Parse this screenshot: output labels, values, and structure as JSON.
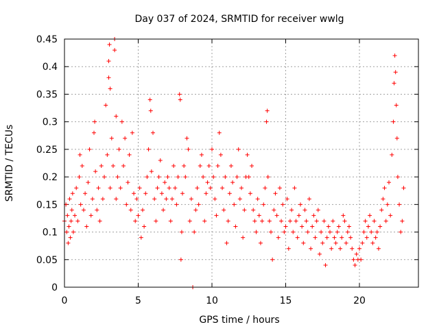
{
  "chart_data": {
    "type": "scatter",
    "title": "Day 037 of 2024, SRMTID for receiver wwlg",
    "xlabel": "GPS time / hours",
    "ylabel": "SRMTID / TECUs",
    "xlim": [
      0,
      24
    ],
    "ylim": [
      0,
      0.45
    ],
    "xticks": [
      0,
      5,
      10,
      15,
      20
    ],
    "xtick_labels": [
      "0",
      "5",
      "10",
      "15",
      "20"
    ],
    "yticks": [
      0,
      0.05,
      0.1,
      0.15,
      0.2,
      0.25,
      0.3,
      0.35,
      0.4,
      0.45
    ],
    "ytick_labels": [
      "0",
      "0.05",
      "0.1",
      "0.15",
      "0.2",
      "0.25",
      "0.3",
      "0.35",
      "0.4",
      "0.45"
    ],
    "grid": true,
    "marker": "plus",
    "marker_color": "#ff0000",
    "series": [
      {
        "name": "SRMTID",
        "points": [
          [
            0.0,
            0.12
          ],
          [
            0.1,
            0.15
          ],
          [
            0.15,
            0.1
          ],
          [
            0.2,
            0.13
          ],
          [
            0.25,
            0.08
          ],
          [
            0.3,
            0.11
          ],
          [
            0.35,
            0.16
          ],
          [
            0.4,
            0.09
          ],
          [
            0.45,
            0.12
          ],
          [
            0.5,
            0.14
          ],
          [
            0.55,
            0.17
          ],
          [
            0.6,
            0.1
          ],
          [
            0.7,
            0.13
          ],
          [
            0.8,
            0.18
          ],
          [
            0.9,
            0.12
          ],
          [
            1.0,
            0.2
          ],
          [
            1.05,
            0.24
          ],
          [
            1.1,
            0.15
          ],
          [
            1.2,
            0.22
          ],
          [
            1.3,
            0.14
          ],
          [
            1.4,
            0.17
          ],
          [
            1.5,
            0.11
          ],
          [
            1.6,
            0.19
          ],
          [
            1.7,
            0.25
          ],
          [
            1.8,
            0.13
          ],
          [
            1.9,
            0.16
          ],
          [
            2.0,
            0.28
          ],
          [
            2.05,
            0.3
          ],
          [
            2.1,
            0.21
          ],
          [
            2.2,
            0.14
          ],
          [
            2.3,
            0.18
          ],
          [
            2.4,
            0.12
          ],
          [
            2.5,
            0.22
          ],
          [
            2.6,
            0.16
          ],
          [
            2.7,
            0.2
          ],
          [
            2.8,
            0.33
          ],
          [
            2.9,
            0.24
          ],
          [
            3.0,
            0.38
          ],
          [
            3.0,
            0.41
          ],
          [
            3.05,
            0.44
          ],
          [
            3.1,
            0.36
          ],
          [
            3.1,
            0.18
          ],
          [
            3.2,
            0.27
          ],
          [
            3.3,
            0.22
          ],
          [
            3.4,
            0.45
          ],
          [
            3.4,
            0.43
          ],
          [
            3.5,
            0.31
          ],
          [
            3.5,
            0.16
          ],
          [
            3.6,
            0.2
          ],
          [
            3.7,
            0.25
          ],
          [
            3.8,
            0.18
          ],
          [
            3.9,
            0.3
          ],
          [
            4.0,
            0.22
          ],
          [
            4.1,
            0.27
          ],
          [
            4.2,
            0.15
          ],
          [
            4.3,
            0.19
          ],
          [
            4.4,
            0.24
          ],
          [
            4.5,
            0.14
          ],
          [
            4.6,
            0.28
          ],
          [
            4.7,
            0.17
          ],
          [
            4.8,
            0.12
          ],
          [
            4.9,
            0.16
          ],
          [
            5.0,
            0.13
          ],
          [
            5.1,
            0.18
          ],
          [
            5.2,
            0.09
          ],
          [
            5.3,
            0.14
          ],
          [
            5.4,
            0.11
          ],
          [
            5.5,
            0.17
          ],
          [
            5.6,
            0.2
          ],
          [
            5.7,
            0.25
          ],
          [
            5.8,
            0.34
          ],
          [
            5.85,
            0.32
          ],
          [
            5.9,
            0.21
          ],
          [
            6.0,
            0.28
          ],
          [
            6.1,
            0.16
          ],
          [
            6.2,
            0.12
          ],
          [
            6.3,
            0.18
          ],
          [
            6.4,
            0.2
          ],
          [
            6.5,
            0.23
          ],
          [
            6.6,
            0.17
          ],
          [
            6.7,
            0.14
          ],
          [
            6.8,
            0.19
          ],
          [
            6.9,
            0.16
          ],
          [
            7.0,
            0.2
          ],
          [
            7.1,
            0.18
          ],
          [
            7.2,
            0.12
          ],
          [
            7.3,
            0.16
          ],
          [
            7.4,
            0.22
          ],
          [
            7.5,
            0.18
          ],
          [
            7.6,
            0.15
          ],
          [
            7.7,
            0.2
          ],
          [
            7.8,
            0.35
          ],
          [
            7.85,
            0.34
          ],
          [
            7.9,
            0.05
          ],
          [
            7.95,
            0.1
          ],
          [
            8.0,
            0.17
          ],
          [
            8.1,
            0.22
          ],
          [
            8.2,
            0.2
          ],
          [
            8.3,
            0.27
          ],
          [
            8.4,
            0.25
          ],
          [
            8.5,
            0.12
          ],
          [
            8.6,
            0.16
          ],
          [
            8.7,
            0.0
          ],
          [
            8.8,
            0.1
          ],
          [
            8.9,
            0.14
          ],
          [
            9.0,
            0.18
          ],
          [
            9.1,
            0.15
          ],
          [
            9.2,
            0.22
          ],
          [
            9.3,
            0.24
          ],
          [
            9.4,
            0.2
          ],
          [
            9.5,
            0.12
          ],
          [
            9.6,
            0.17
          ],
          [
            9.7,
            0.19
          ],
          [
            9.8,
            0.22
          ],
          [
            9.9,
            0.18
          ],
          [
            10.0,
            0.25
          ],
          [
            10.1,
            0.2
          ],
          [
            10.2,
            0.16
          ],
          [
            10.3,
            0.13
          ],
          [
            10.4,
            0.22
          ],
          [
            10.5,
            0.28
          ],
          [
            10.6,
            0.24
          ],
          [
            10.7,
            0.18
          ],
          [
            10.8,
            0.14
          ],
          [
            10.9,
            0.2
          ],
          [
            11.0,
            0.08
          ],
          [
            11.1,
            0.12
          ],
          [
            11.2,
            0.17
          ],
          [
            11.3,
            0.22
          ],
          [
            11.4,
            0.19
          ],
          [
            11.5,
            0.15
          ],
          [
            11.6,
            0.11
          ],
          [
            11.7,
            0.2
          ],
          [
            11.8,
            0.25
          ],
          [
            11.9,
            0.16
          ],
          [
            12.0,
            0.18
          ],
          [
            12.1,
            0.09
          ],
          [
            12.2,
            0.14
          ],
          [
            12.3,
            0.2
          ],
          [
            12.4,
            0.24
          ],
          [
            12.5,
            0.2
          ],
          [
            12.6,
            0.17
          ],
          [
            12.7,
            0.22
          ],
          [
            12.8,
            0.14
          ],
          [
            12.9,
            0.12
          ],
          [
            13.0,
            0.1
          ],
          [
            13.1,
            0.16
          ],
          [
            13.2,
            0.13
          ],
          [
            13.3,
            0.08
          ],
          [
            13.4,
            0.12
          ],
          [
            13.5,
            0.15
          ],
          [
            13.6,
            0.18
          ],
          [
            13.7,
            0.3
          ],
          [
            13.75,
            0.32
          ],
          [
            13.8,
            0.2
          ],
          [
            13.9,
            0.12
          ],
          [
            14.0,
            0.1
          ],
          [
            14.1,
            0.05
          ],
          [
            14.2,
            0.14
          ],
          [
            14.3,
            0.17
          ],
          [
            14.4,
            0.13
          ],
          [
            14.5,
            0.09
          ],
          [
            14.6,
            0.18
          ],
          [
            14.7,
            0.12
          ],
          [
            14.8,
            0.15
          ],
          [
            14.9,
            0.1
          ],
          [
            15.0,
            0.11
          ],
          [
            15.1,
            0.16
          ],
          [
            15.2,
            0.07
          ],
          [
            15.3,
            0.12
          ],
          [
            15.4,
            0.14
          ],
          [
            15.5,
            0.1
          ],
          [
            15.6,
            0.18
          ],
          [
            15.7,
            0.12
          ],
          [
            15.8,
            0.09
          ],
          [
            15.9,
            0.13
          ],
          [
            16.0,
            0.15
          ],
          [
            16.1,
            0.11
          ],
          [
            16.2,
            0.08
          ],
          [
            16.3,
            0.14
          ],
          [
            16.4,
            0.12
          ],
          [
            16.5,
            0.1
          ],
          [
            16.6,
            0.16
          ],
          [
            16.7,
            0.07
          ],
          [
            16.8,
            0.11
          ],
          [
            16.9,
            0.13
          ],
          [
            17.0,
            0.09
          ],
          [
            17.1,
            0.12
          ],
          [
            17.2,
            0.14
          ],
          [
            17.3,
            0.06
          ],
          [
            17.4,
            0.1
          ],
          [
            17.5,
            0.08
          ],
          [
            17.6,
            0.12
          ],
          [
            17.7,
            0.04
          ],
          [
            17.8,
            0.09
          ],
          [
            17.9,
            0.11
          ],
          [
            18.0,
            0.1
          ],
          [
            18.1,
            0.07
          ],
          [
            18.2,
            0.12
          ],
          [
            18.3,
            0.09
          ],
          [
            18.4,
            0.08
          ],
          [
            18.5,
            0.1
          ],
          [
            18.6,
            0.11
          ],
          [
            18.7,
            0.07
          ],
          [
            18.8,
            0.09
          ],
          [
            18.9,
            0.13
          ],
          [
            19.0,
            0.12
          ],
          [
            19.1,
            0.08
          ],
          [
            19.2,
            0.1
          ],
          [
            19.3,
            0.11
          ],
          [
            19.4,
            0.09
          ],
          [
            19.5,
            0.07
          ],
          [
            19.6,
            0.05
          ],
          [
            19.7,
            0.04
          ],
          [
            19.8,
            0.06
          ],
          [
            19.9,
            0.05
          ],
          [
            20.0,
            0.07
          ],
          [
            20.1,
            0.05
          ],
          [
            20.2,
            0.08
          ],
          [
            20.3,
            0.1
          ],
          [
            20.4,
            0.12
          ],
          [
            20.5,
            0.09
          ],
          [
            20.6,
            0.11
          ],
          [
            20.7,
            0.13
          ],
          [
            20.8,
            0.1
          ],
          [
            20.9,
            0.08
          ],
          [
            21.0,
            0.12
          ],
          [
            21.1,
            0.09
          ],
          [
            21.2,
            0.1
          ],
          [
            21.3,
            0.07
          ],
          [
            21.4,
            0.11
          ],
          [
            21.5,
            0.14
          ],
          [
            21.6,
            0.16
          ],
          [
            21.7,
            0.18
          ],
          [
            21.8,
            0.12
          ],
          [
            21.9,
            0.15
          ],
          [
            22.0,
            0.19
          ],
          [
            22.1,
            0.13
          ],
          [
            22.2,
            0.24
          ],
          [
            22.3,
            0.3
          ],
          [
            22.35,
            0.37
          ],
          [
            22.4,
            0.42
          ],
          [
            22.45,
            0.39
          ],
          [
            22.5,
            0.33
          ],
          [
            22.55,
            0.27
          ],
          [
            22.6,
            0.2
          ],
          [
            22.7,
            0.15
          ],
          [
            22.8,
            0.1
          ],
          [
            22.9,
            0.12
          ],
          [
            23.0,
            0.18
          ]
        ]
      }
    ]
  }
}
